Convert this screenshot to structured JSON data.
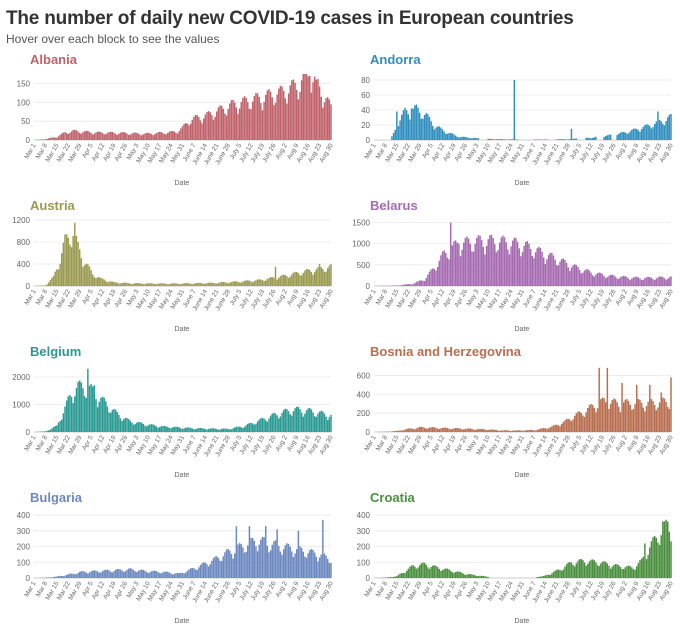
{
  "header": {
    "title": "The number of daily new COVID-19 cases in European countries",
    "subtitle": "Hover over each block to see the values"
  },
  "date_ticks": [
    "Mar 1",
    "Mar 8",
    "Mar 15",
    "Mar 22",
    "Mar 29",
    "Apr 5",
    "Apr 12",
    "Apr 19",
    "Apr 26",
    "May 3",
    "May 10",
    "May 17",
    "May 24",
    "May 31",
    "June 7",
    "June 14",
    "June 21",
    "June 28",
    "July 5",
    "July 12",
    "July 19",
    "July 26",
    "Aug 2",
    "Aug 9",
    "Aug 16",
    "Aug 23",
    "Aug 30"
  ],
  "chart_data": [
    {
      "type": "bar",
      "title": "Albania",
      "xlabel": "Date",
      "color": "#c0626a",
      "ylim": [
        0,
        175
      ],
      "yticks": [
        0,
        50,
        100,
        150
      ],
      "keyframes": [
        [
          1,
          0
        ],
        [
          8,
          2
        ],
        [
          15,
          8
        ],
        [
          20,
          18
        ],
        [
          25,
          22
        ],
        [
          32,
          20
        ],
        [
          40,
          18
        ],
        [
          55,
          17
        ],
        [
          70,
          15
        ],
        [
          88,
          20
        ],
        [
          92,
          30
        ],
        [
          97,
          50
        ],
        [
          107,
          60
        ],
        [
          122,
          85
        ],
        [
          137,
          100
        ],
        [
          152,
          115
        ],
        [
          163,
          135
        ],
        [
          168,
          160
        ],
        [
          172,
          150
        ],
        [
          176,
          125
        ],
        [
          183,
          80
        ]
      ],
      "spikes": [
        [
          168,
          175
        ],
        [
          170,
          170
        ],
        [
          174,
          160
        ]
      ]
    },
    {
      "type": "bar",
      "title": "Andorra",
      "xlabel": "Date",
      "color": "#2f8fc0",
      "ylim": [
        0,
        88
      ],
      "yticks": [
        0,
        20,
        40,
        60,
        80
      ],
      "keyframes": [
        [
          1,
          0
        ],
        [
          11,
          0
        ],
        [
          13,
          8
        ],
        [
          16,
          22
        ],
        [
          20,
          35
        ],
        [
          27,
          38
        ],
        [
          33,
          30
        ],
        [
          38,
          18
        ],
        [
          45,
          10
        ],
        [
          53,
          4
        ],
        [
          65,
          2
        ],
        [
          75,
          1
        ],
        [
          100,
          0.5
        ],
        [
          120,
          1
        ],
        [
          135,
          3
        ],
        [
          150,
          7
        ],
        [
          160,
          12
        ],
        [
          170,
          18
        ],
        [
          176,
          22
        ],
        [
          183,
          28
        ]
      ],
      "spikes": [
        [
          15,
          38
        ],
        [
          24,
          42
        ],
        [
          87,
          80
        ],
        [
          122,
          15
        ],
        [
          175,
          38
        ]
      ],
      "zeros": [
        [
          66,
          70
        ],
        [
          90,
          98
        ],
        [
          108,
          112
        ],
        [
          126,
          130
        ],
        [
          138,
          141
        ],
        [
          147,
          149
        ]
      ]
    },
    {
      "type": "bar",
      "title": "Austria",
      "xlabel": "Date",
      "color": "#9a9a50",
      "ylim": [
        0,
        1200
      ],
      "yticks": [
        0,
        400,
        800,
        1200
      ],
      "keyframes": [
        [
          1,
          0
        ],
        [
          8,
          10
        ],
        [
          13,
          150
        ],
        [
          17,
          450
        ],
        [
          20,
          750
        ],
        [
          25,
          900
        ],
        [
          28,
          650
        ],
        [
          31,
          450
        ],
        [
          37,
          200
        ],
        [
          42,
          120
        ],
        [
          50,
          60
        ],
        [
          60,
          45
        ],
        [
          75,
          40
        ],
        [
          90,
          40
        ],
        [
          110,
          50
        ],
        [
          125,
          70
        ],
        [
          140,
          100
        ],
        [
          155,
          170
        ],
        [
          165,
          230
        ],
        [
          175,
          280
        ],
        [
          183,
          320
        ]
      ],
      "spikes": [
        [
          26,
          1150
        ],
        [
          149,
          350
        ],
        [
          176,
          400
        ]
      ]
    },
    {
      "type": "bar",
      "title": "Belarus",
      "xlabel": "Date",
      "color": "#a56ab0",
      "ylim": [
        0,
        1560
      ],
      "yticks": [
        0,
        500,
        1000,
        1500
      ],
      "keyframes": [
        [
          1,
          0
        ],
        [
          15,
          10
        ],
        [
          25,
          50
        ],
        [
          32,
          150
        ],
        [
          38,
          400
        ],
        [
          44,
          700
        ],
        [
          48,
          800
        ],
        [
          52,
          900
        ],
        [
          60,
          950
        ],
        [
          70,
          980
        ],
        [
          85,
          940
        ],
        [
          95,
          850
        ],
        [
          105,
          700
        ],
        [
          115,
          550
        ],
        [
          125,
          400
        ],
        [
          135,
          280
        ],
        [
          145,
          220
        ],
        [
          155,
          190
        ],
        [
          165,
          170
        ],
        [
          175,
          180
        ],
        [
          183,
          190
        ]
      ],
      "spikes": [
        [
          48,
          1500
        ],
        [
          53,
          1000
        ]
      ]
    },
    {
      "type": "bar",
      "title": "Belgium",
      "xlabel": "Date",
      "color": "#2a9a92",
      "ylim": [
        0,
        2400
      ],
      "yticks": [
        0,
        1000,
        2000
      ],
      "keyframes": [
        [
          1,
          0
        ],
        [
          8,
          20
        ],
        [
          15,
          200
        ],
        [
          20,
          800
        ],
        [
          24,
          1300
        ],
        [
          28,
          1500
        ],
        [
          32,
          1500
        ],
        [
          36,
          1400
        ],
        [
          40,
          1200
        ],
        [
          45,
          950
        ],
        [
          52,
          600
        ],
        [
          60,
          350
        ],
        [
          70,
          250
        ],
        [
          80,
          180
        ],
        [
          100,
          120
        ],
        [
          120,
          100
        ],
        [
          130,
          200
        ],
        [
          140,
          400
        ],
        [
          150,
          600
        ],
        [
          160,
          750
        ],
        [
          170,
          700
        ],
        [
          183,
          550
        ]
      ],
      "spikes": [
        [
          34,
          2300
        ],
        [
          30,
          1800
        ],
        [
          38,
          1700
        ]
      ]
    },
    {
      "type": "bar",
      "title": "Bosnia and Herzegovina",
      "xlabel": "Date",
      "color": "#b86e4f",
      "ylim": [
        0,
        700
      ],
      "yticks": [
        0,
        200,
        400,
        600
      ],
      "keyframes": [
        [
          1,
          0
        ],
        [
          8,
          2
        ],
        [
          15,
          10
        ],
        [
          22,
          30
        ],
        [
          30,
          45
        ],
        [
          40,
          40
        ],
        [
          50,
          35
        ],
        [
          60,
          30
        ],
        [
          70,
          25
        ],
        [
          80,
          15
        ],
        [
          90,
          15
        ],
        [
          100,
          20
        ],
        [
          110,
          50
        ],
        [
          118,
          100
        ],
        [
          124,
          160
        ],
        [
          130,
          200
        ],
        [
          136,
          260
        ],
        [
          142,
          300
        ],
        [
          150,
          280
        ],
        [
          160,
          280
        ],
        [
          170,
          280
        ],
        [
          183,
          300
        ]
      ],
      "spikes": [
        [
          139,
          680
        ],
        [
          144,
          680
        ],
        [
          153,
          520
        ],
        [
          162,
          500
        ],
        [
          170,
          500
        ],
        [
          177,
          420
        ],
        [
          183,
          580
        ]
      ]
    },
    {
      "type": "bar",
      "title": "Bulgaria",
      "xlabel": "Date",
      "color": "#6c88c0",
      "ylim": [
        0,
        420
      ],
      "yticks": [
        0,
        100,
        200,
        300,
        400
      ],
      "keyframes": [
        [
          1,
          0
        ],
        [
          8,
          2
        ],
        [
          15,
          8
        ],
        [
          22,
          20
        ],
        [
          30,
          35
        ],
        [
          40,
          40
        ],
        [
          50,
          45
        ],
        [
          60,
          50
        ],
        [
          70,
          40
        ],
        [
          80,
          35
        ],
        [
          90,
          25
        ],
        [
          100,
          60
        ],
        [
          110,
          100
        ],
        [
          120,
          150
        ],
        [
          130,
          190
        ],
        [
          138,
          220
        ],
        [
          145,
          200
        ],
        [
          155,
          180
        ],
        [
          165,
          160
        ],
        [
          175,
          140
        ],
        [
          183,
          110
        ]
      ],
      "spikes": [
        [
          125,
          330
        ],
        [
          133,
          330
        ],
        [
          143,
          330
        ],
        [
          150,
          310
        ],
        [
          163,
          300
        ],
        [
          178,
          370
        ]
      ]
    },
    {
      "type": "bar",
      "title": "Croatia",
      "xlabel": "Date",
      "color": "#4a8f3e",
      "ylim": [
        0,
        420
      ],
      "yticks": [
        0,
        100,
        200,
        300,
        400
      ],
      "keyframes": [
        [
          1,
          0
        ],
        [
          8,
          2
        ],
        [
          15,
          10
        ],
        [
          20,
          40
        ],
        [
          25,
          70
        ],
        [
          32,
          80
        ],
        [
          38,
          65
        ],
        [
          45,
          50
        ],
        [
          52,
          35
        ],
        [
          60,
          20
        ],
        [
          70,
          8
        ],
        [
          80,
          3
        ],
        [
          95,
          3
        ],
        [
          105,
          10
        ],
        [
          115,
          50
        ],
        [
          122,
          90
        ],
        [
          130,
          100
        ],
        [
          140,
          90
        ],
        [
          150,
          70
        ],
        [
          160,
          60
        ],
        [
          165,
          100
        ],
        [
          170,
          180
        ],
        [
          175,
          250
        ],
        [
          180,
          300
        ],
        [
          183,
          300
        ]
      ],
      "spikes": [
        [
          167,
          220
        ],
        [
          178,
          360
        ],
        [
          181,
          360
        ]
      ],
      "zeros": [
        [
          72,
          100
        ]
      ]
    }
  ]
}
